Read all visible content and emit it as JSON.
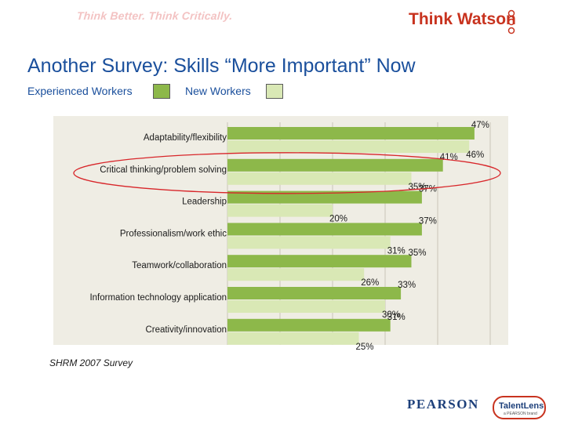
{
  "header": {
    "tagline": "Think Better. Think Critically.",
    "brand": "Think Watson"
  },
  "slide": {
    "title": "Another Survey:  Skills “More Important” Now",
    "legend_experienced": "Experienced Workers",
    "legend_new": "New Workers",
    "source": "SHRM 2007 Survey"
  },
  "footer": {
    "pearson": "PEARSON",
    "talentlens": "TalentLens",
    "talentlens_sub": "a PEARSON brand"
  },
  "colors": {
    "experienced": "#8db84a",
    "new": "#d9e8b5",
    "highlight": "#d8262a",
    "title": "#1a4f9c",
    "brand_red": "#c8331f"
  },
  "chart_data": {
    "type": "bar",
    "orientation": "horizontal",
    "categories": [
      "Adaptability/flexibility",
      "Critical thinking/problem solving",
      "Leadership",
      "Professionalism/work ethic",
      "Teamwork/collaboration",
      "Information technology application",
      "Creativity/innovation"
    ],
    "series": [
      {
        "name": "Experienced Workers",
        "values": [
          47,
          41,
          37,
          37,
          35,
          33,
          31
        ],
        "labels": [
          "47%",
          "41%",
          "37%",
          "37%",
          "35%",
          "33%",
          "31%"
        ]
      },
      {
        "name": "New Workers",
        "values": [
          46,
          35,
          20,
          31,
          26,
          30,
          25
        ],
        "labels": [
          "46%",
          "35%",
          "20%",
          "31%",
          "26%",
          "30%",
          "25%"
        ]
      }
    ],
    "xlim": [
      0,
      50
    ],
    "grid": true,
    "highlighted_category": "Critical thinking/problem solving"
  }
}
